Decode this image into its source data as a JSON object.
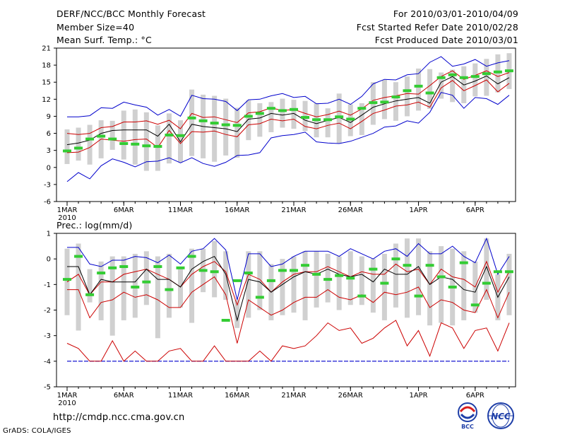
{
  "header": {
    "title": "DERF/NCC/BCC Monthly Forecast",
    "member": "Member Size=40",
    "variable": "Mean Surf. Temp.: °C",
    "period": "For 2010/03/01-2010/04/09",
    "started": "Fcst Started Refer Date 2010/02/28",
    "produced": "Fcst Produced Date 2010/03/01"
  },
  "prec_title": "Prec.: log(mm/d)",
  "footer": {
    "url": "http://cmdp.ncc.cma.gov.cn",
    "grads": "GrADS: COLA/IGES"
  },
  "logos": {
    "left": "BCC",
    "right": "NCC"
  },
  "colors": {
    "max_min": "#0000cc",
    "spread": "#cc0000",
    "mean": "#000000",
    "obs": "#33cc33",
    "box": "#d0d0d0",
    "floor": "#0000cc"
  },
  "chart_data": [
    {
      "type": "line",
      "title": "Mean Surf. Temp.: °C",
      "x_tick_labels": [
        "1MAR",
        "6MAR",
        "11MAR",
        "16MAR",
        "21MAR",
        "26MAR",
        "1APR",
        "6APR"
      ],
      "x_tick_days": [
        1,
        6,
        11,
        16,
        21,
        26,
        32,
        37
      ],
      "x_year_label": "2010",
      "ylim": [
        -6,
        21
      ],
      "yticks": [
        -6,
        -3,
        0,
        3,
        6,
        9,
        12,
        15,
        18,
        21
      ],
      "days": 40,
      "series": [
        {
          "name": "max",
          "color": "#0000cc",
          "values": [
            8.9,
            8.9,
            9.1,
            10.5,
            10.4,
            11.5,
            11,
            10.6,
            9.2,
            10.2,
            9,
            12.7,
            12.1,
            12,
            11.6,
            10,
            11.9,
            12,
            12.6,
            13,
            12.3,
            12.5,
            11.2,
            11.3,
            12,
            11.1,
            12.5,
            14.7,
            15.5,
            15.4,
            16.3,
            16.5,
            18.5,
            19.5,
            17.8,
            18.2,
            19,
            17.8,
            18.4,
            18.8
          ]
        },
        {
          "name": "upper",
          "color": "#cc0000",
          "values": [
            6,
            5.8,
            6,
            7,
            7.2,
            8,
            8,
            8.2,
            7.6,
            8.3,
            6.8,
            9.5,
            8.8,
            8.9,
            8.4,
            7.9,
            9.6,
            9.8,
            10.5,
            10,
            10.2,
            9.5,
            8.9,
            9.3,
            9.9,
            9.2,
            10.3,
            11.8,
            12.3,
            12.6,
            13,
            12.9,
            14.4,
            16,
            17,
            15.5,
            16.2,
            17,
            16,
            16.7
          ]
        },
        {
          "name": "mean",
          "color": "#000000",
          "values": [
            4,
            4.3,
            4.8,
            6,
            6.5,
            6.6,
            6.6,
            6.6,
            5.5,
            7.6,
            4.5,
            7.6,
            7.2,
            7,
            6.8,
            6.3,
            8.5,
            8.7,
            9.5,
            9.2,
            9.5,
            8.3,
            7.7,
            8.3,
            8.8,
            7.9,
            9.2,
            10.6,
            11.2,
            11.7,
            12,
            12.3,
            11.3,
            15,
            16,
            14.5,
            15.2,
            16.1,
            14.7,
            15.8
          ]
        },
        {
          "name": "lower",
          "color": "#cc0000",
          "values": [
            2.6,
            2.7,
            3.5,
            5,
            4.8,
            4.6,
            4.9,
            5,
            3.5,
            6.5,
            4.2,
            6.3,
            6.2,
            6.4,
            5.8,
            5.4,
            7.5,
            7.7,
            8.5,
            8.2,
            8.5,
            7.2,
            6.8,
            7.4,
            7.8,
            6.8,
            8.1,
            9.5,
            10.1,
            10.8,
            11,
            11.5,
            10.6,
            14,
            15.3,
            13.5,
            14.4,
            15.4,
            13.3,
            14.8
          ]
        },
        {
          "name": "min",
          "color": "#0000cc",
          "values": [
            -2.5,
            -0.9,
            -2,
            0.3,
            1.5,
            0.9,
            0.1,
            1,
            1.1,
            1.7,
            0.8,
            1.7,
            0.7,
            0.2,
            0.9,
            2.1,
            2.2,
            2.6,
            5.2,
            5.6,
            5.8,
            6.2,
            4.5,
            4.3,
            4.2,
            4.6,
            5.3,
            6,
            7.1,
            7.3,
            8.2,
            7.8,
            9.7,
            13.2,
            12.7,
            10.4,
            12.3,
            12.1,
            11.1,
            12.7
          ]
        }
      ],
      "boxes": {
        "low": [
          0.6,
          1.2,
          0.5,
          1.6,
          3.1,
          1.4,
          0.5,
          -0.6,
          -0.6,
          0.7,
          0.9,
          2,
          1.6,
          1,
          2.1,
          1.7,
          4.8,
          5.4,
          6.2,
          7,
          6.8,
          6.4,
          5.3,
          5.3,
          4.2,
          5.5,
          5.7,
          7.5,
          8.5,
          8.2,
          9,
          10,
          10.3,
          12.1,
          11.5,
          11.3,
          12.5,
          12.6,
          13.2,
          13.8
        ],
        "high": [
          6.7,
          7,
          7.5,
          8.3,
          8.2,
          10,
          10.2,
          9.7,
          7.4,
          9.5,
          8.3,
          13.7,
          12.8,
          12.6,
          12.1,
          10.5,
          11.8,
          11.3,
          11.5,
          12.1,
          11.9,
          11.7,
          11.3,
          10.4,
          13,
          11.1,
          11.3,
          15,
          15.4,
          15,
          16,
          17.4,
          17.3,
          16.7,
          17.2,
          17.8,
          18.3,
          19.1,
          19.9,
          20.1
        ]
      },
      "observed": [
        2.9,
        3.4,
        5,
        5.5,
        5,
        4.2,
        4.1,
        3.8,
        3.7,
        5.7,
        5.6,
        8.7,
        8.2,
        7.8,
        7.5,
        7.4,
        9,
        9.5,
        10.4,
        10,
        10.2,
        8.8,
        8.4,
        8.4,
        8.9,
        8.5,
        10.4,
        11.4,
        11.5,
        12.4,
        13.5,
        14.3,
        13.1,
        15.8,
        16.3,
        15.8,
        16,
        16.5,
        16.8,
        17
      ]
    },
    {
      "type": "line",
      "title": "Prec.: log(mm/d)",
      "x_tick_labels": [
        "1MAR",
        "6MAR",
        "11MAR",
        "16MAR",
        "21MAR",
        "26MAR",
        "1APR",
        "6APR"
      ],
      "x_tick_days": [
        1,
        6,
        11,
        16,
        21,
        26,
        32,
        37
      ],
      "x_year_label": "2010",
      "ylim": [
        -5,
        1
      ],
      "yticks": [
        -5,
        -4,
        -3,
        -2,
        -1,
        0,
        1
      ],
      "days": 40,
      "floor": -4,
      "series": [
        {
          "name": "max",
          "color": "#0000cc",
          "values": [
            0.45,
            0.45,
            -0.2,
            -0.3,
            -0.05,
            -0.05,
            0.1,
            0.05,
            -0.15,
            0.15,
            -0.2,
            0.3,
            0.4,
            0.8,
            0.35,
            -1.6,
            0.2,
            0.2,
            -0.3,
            -0.2,
            0.1,
            0.3,
            0.3,
            0.3,
            0.1,
            0.4,
            0.2,
            0,
            0.3,
            0.4,
            0.1,
            0.6,
            0.2,
            0.2,
            0.5,
            0.1,
            -0.15,
            0.8,
            -0.6,
            0.1
          ]
        },
        {
          "name": "upper",
          "color": "#cc0000",
          "values": [
            -0.9,
            -0.6,
            -1.4,
            -0.9,
            -0.9,
            -0.6,
            -0.5,
            -0.4,
            -0.6,
            -0.8,
            -1.1,
            -0.6,
            -0.3,
            -0.1,
            -0.5,
            -1.8,
            -0.6,
            -0.8,
            -1.3,
            -0.9,
            -0.6,
            -0.5,
            -0.5,
            -0.3,
            -0.5,
            -0.7,
            -0.5,
            -0.6,
            -0.6,
            -0.2,
            -0.5,
            -0.4,
            -1,
            -0.4,
            -0.7,
            -0.8,
            -1.1,
            -0.1,
            -1.3,
            -0.5
          ]
        },
        {
          "name": "mean",
          "color": "#000000",
          "values": [
            -0.3,
            -0.3,
            -1.4,
            -0.8,
            -0.9,
            -0.9,
            -0.9,
            -0.4,
            -0.8,
            -0.8,
            -1.1,
            -0.4,
            -0.1,
            0.1,
            -0.6,
            -2.4,
            -0.8,
            -0.9,
            -1.3,
            -1,
            -0.7,
            -0.5,
            -0.6,
            -0.4,
            -0.6,
            -0.7,
            -0.6,
            -0.9,
            -0.4,
            -0.6,
            -0.6,
            -0.3,
            -1,
            -0.7,
            -0.8,
            -1.2,
            -1.3,
            -0.3,
            -1.5,
            -0.7
          ]
        },
        {
          "name": "lower",
          "color": "#cc0000",
          "values": [
            -1.2,
            -1.2,
            -2.3,
            -1.7,
            -1.6,
            -1.3,
            -1.5,
            -1.4,
            -1.6,
            -1.9,
            -1.9,
            -1.3,
            -1,
            -0.7,
            -1.4,
            -3.3,
            -1.6,
            -1.9,
            -2.2,
            -2,
            -1.7,
            -1.5,
            -1.5,
            -1.2,
            -1.5,
            -1.6,
            -1.4,
            -1.7,
            -1.3,
            -1.4,
            -1.3,
            -1.1,
            -1.9,
            -1.6,
            -1.7,
            -2,
            -2.1,
            -1.2,
            -2.3,
            -1.3
          ]
        },
        {
          "name": "min",
          "color": "#cc0000",
          "values": [
            -3.3,
            -3.5,
            -4,
            -4,
            -3.2,
            -4,
            -3.6,
            -4,
            -4,
            -3.6,
            -3.5,
            -4,
            -4,
            -3.4,
            -4,
            -4,
            -4,
            -3.6,
            -4,
            -3.4,
            -3.5,
            -3.4,
            -3,
            -2.5,
            -2.8,
            -2.7,
            -3.3,
            -3.1,
            -2.7,
            -2.4,
            -3.4,
            -2.8,
            -3.8,
            -2.5,
            -2.7,
            -3.5,
            -2.8,
            -2.7,
            -3.6,
            -2.5
          ]
        }
      ],
      "boxes": {
        "low": [
          -2.2,
          -2.8,
          -1.7,
          -2.4,
          -3,
          -2.4,
          -2.3,
          -1.8,
          -3.1,
          -2.3,
          -1.9,
          -2.5,
          -1.3,
          -1.5,
          -1.6,
          -2.7,
          -2.3,
          -2,
          -2.4,
          -2.2,
          -2.1,
          -2.4,
          -1.9,
          -1.7,
          -2,
          -1.8,
          -1.8,
          -2.1,
          -2.4,
          -1.9,
          -2.3,
          -2.2,
          -2.6,
          -2.5,
          -2.6,
          -2.4,
          -2.1,
          -1.6,
          -2.4,
          -2.2
        ],
        "high": [
          0.4,
          0.6,
          -0.4,
          -0.1,
          0.1,
          0.1,
          0.2,
          0.3,
          0.1,
          0.2,
          -0.3,
          0.4,
          0.4,
          0.7,
          0.3,
          -1.6,
          0.3,
          0.3,
          -0.2,
          0,
          0.1,
          0.3,
          0.3,
          0.2,
          0.1,
          0.3,
          0.1,
          0,
          0.2,
          0.6,
          0.8,
          0.8,
          0.3,
          0.5,
          0.4,
          0.3,
          -0.1,
          0.8,
          -0.6,
          0.2
        ]
      },
      "observed": [
        -0.8,
        0.1,
        -1.4,
        -0.55,
        -0.35,
        -0.3,
        -1.1,
        -0.9,
        -0.3,
        -1.2,
        -0.35,
        0.1,
        -0.45,
        -0.5,
        -2.4,
        -0.85,
        -0.55,
        -1.5,
        -0.85,
        -0.45,
        -0.45,
        -0.25,
        -0.6,
        -0.8,
        -0.65,
        -0.75,
        -1.45,
        -0.4,
        -0.95,
        0,
        -0.25,
        -1.45,
        -0.25,
        -0.7,
        -1.1,
        -0.15,
        -1.8,
        -0.95,
        -0.5,
        -0.5
      ]
    }
  ]
}
